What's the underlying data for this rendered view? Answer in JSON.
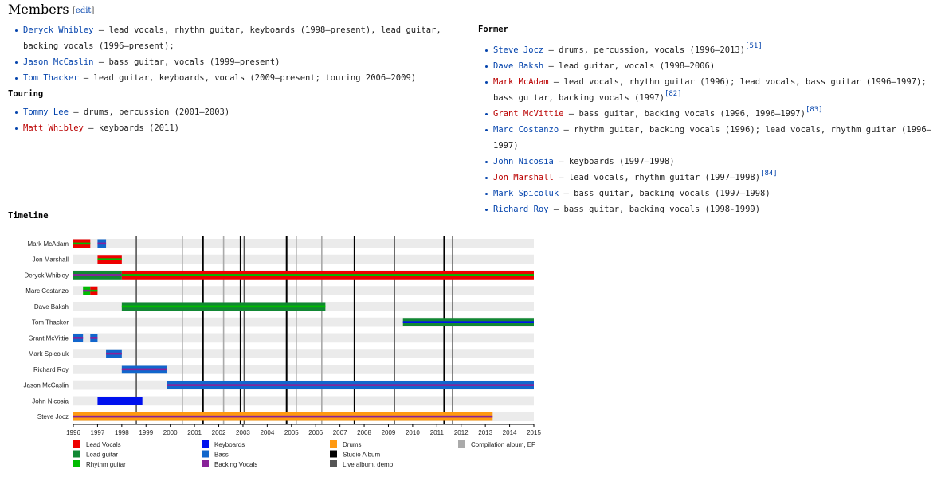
{
  "section": {
    "title": "Members",
    "edit_open": "[",
    "edit": "edit",
    "edit_close": "]"
  },
  "current": [
    {
      "name": "Deryck Whibley",
      "link": "blue",
      "desc": " – lead vocals, rhythm guitar, keyboards (1998–present), lead guitar, backing vocals (1996–present);",
      "ref": ""
    },
    {
      "name": "Jason McCaslin",
      "link": "blue",
      "desc": " – bass guitar, vocals (1999–present)",
      "ref": ""
    },
    {
      "name": "Tom Thacker",
      "link": "blue",
      "desc": " – lead guitar, keyboards, vocals (2009–present; touring 2006–2009)",
      "ref": ""
    }
  ],
  "touring_title": "Touring",
  "touring": [
    {
      "name": "Tommy Lee",
      "link": "blue",
      "desc": " – drums, percussion (2001–2003)",
      "ref": ""
    },
    {
      "name": "Matt Whibley",
      "link": "red",
      "desc": " – keyboards (2011)",
      "ref": ""
    }
  ],
  "former_title": "Former",
  "former": [
    {
      "name": "Steve Jocz",
      "link": "blue",
      "desc": " – drums, percussion, vocals (1996–2013)",
      "ref": "[51]"
    },
    {
      "name": "Dave Baksh",
      "link": "blue",
      "desc": " – lead guitar, vocals (1998–2006)",
      "ref": ""
    },
    {
      "name": "Mark McAdam",
      "link": "red",
      "desc": " – lead vocals, rhythm guitar (1996); lead vocals, bass guitar (1996–1997); bass guitar, backing vocals (1997)",
      "ref": "[82]"
    },
    {
      "name": "Grant McVittie",
      "link": "red",
      "desc": " – bass guitar, backing vocals (1996, 1996–1997)",
      "ref": "[83]"
    },
    {
      "name": "Marc Costanzo",
      "link": "blue",
      "desc": " – rhythm guitar, backing vocals (1996); lead vocals, rhythm guitar (1996–1997)",
      "ref": ""
    },
    {
      "name": "John Nicosia",
      "link": "blue",
      "desc": " – keyboards (1997–1998)",
      "ref": ""
    },
    {
      "name": "Jon Marshall",
      "link": "red",
      "desc": " – lead vocals, rhythm guitar (1997–1998)",
      "ref": "[84]"
    },
    {
      "name": "Mark Spicoluk",
      "link": "blue",
      "desc": " – bass guitar, backing vocals (1997–1998)",
      "ref": ""
    },
    {
      "name": "Richard Roy",
      "link": "blue",
      "desc": " – bass guitar, backing vocals (1998-1999)",
      "ref": ""
    }
  ],
  "timeline_title": "Timeline",
  "colors": {
    "lead_vocals": "#ee0000",
    "lead_guitar": "#118833",
    "rhythm_guitar": "#00bb00",
    "keyboards": "#0011ee",
    "bass": "#1166cc",
    "backing_vocals": "#882299",
    "drums": "#ff9911",
    "studio": "#000000",
    "live": "#555555",
    "compilation": "#aaaaaa"
  },
  "chart_data": {
    "type": "bar",
    "xlim": [
      1996,
      2015
    ],
    "x_ticks": [
      "1996",
      "1997",
      "1998",
      "1999",
      "2000",
      "2001",
      "2002",
      "2003",
      "2004",
      "2005",
      "2006",
      "2007",
      "2008",
      "2009",
      "2010",
      "2011",
      "2012",
      "2013",
      "2014",
      "2015"
    ],
    "rows": [
      {
        "name": "Mark McAdam",
        "bars": [
          {
            "start": 1996.0,
            "end": 1996.7,
            "outer": "lead_vocals",
            "inner": "rhythm_guitar"
          },
          {
            "start": 1997.0,
            "end": 1997.35,
            "outer": "bass",
            "inner": "backing_vocals"
          }
        ]
      },
      {
        "name": "Jon Marshall",
        "bars": [
          {
            "start": 1997.0,
            "end": 1998.0,
            "outer": "lead_vocals",
            "inner": "rhythm_guitar"
          }
        ]
      },
      {
        "name": "Deryck Whibley",
        "bars": [
          {
            "start": 1996.0,
            "end": 1998.0,
            "outer": "lead_guitar",
            "inner": "backing_vocals"
          },
          {
            "start": 1998.0,
            "end": 2015.0,
            "outer": "lead_vocals",
            "inner": "rhythm_guitar"
          }
        ]
      },
      {
        "name": "Marc Costanzo",
        "bars": [
          {
            "start": 1996.4,
            "end": 1996.7,
            "outer": "rhythm_guitar",
            "inner": "backing_vocals"
          },
          {
            "start": 1996.7,
            "end": 1997.0,
            "outer": "lead_vocals",
            "inner": "rhythm_guitar"
          }
        ]
      },
      {
        "name": "Dave Baksh",
        "bars": [
          {
            "start": 1998.0,
            "end": 2006.4,
            "outer": "lead_guitar",
            "inner": "rhythm_guitar"
          }
        ]
      },
      {
        "name": "Tom Thacker",
        "bars": [
          {
            "start": 2009.6,
            "end": 2015.0,
            "outer": "lead_guitar",
            "inner": "keyboards"
          }
        ]
      },
      {
        "name": "Grant McVittie",
        "bars": [
          {
            "start": 1996.0,
            "end": 1996.4,
            "outer": "bass",
            "inner": "backing_vocals"
          },
          {
            "start": 1996.7,
            "end": 1997.0,
            "outer": "bass",
            "inner": "backing_vocals"
          }
        ]
      },
      {
        "name": "Mark Spicoluk",
        "bars": [
          {
            "start": 1997.35,
            "end": 1998.0,
            "outer": "bass",
            "inner": "backing_vocals"
          }
        ]
      },
      {
        "name": "Richard Roy",
        "bars": [
          {
            "start": 1998.0,
            "end": 1999.85,
            "outer": "bass",
            "inner": "backing_vocals"
          }
        ]
      },
      {
        "name": "Jason McCaslin",
        "bars": [
          {
            "start": 1999.85,
            "end": 2015.0,
            "outer": "bass",
            "inner": "backing_vocals"
          }
        ]
      },
      {
        "name": "John Nicosia",
        "bars": [
          {
            "start": 1997.0,
            "end": 1998.85,
            "outer": "keyboards",
            "inner": ""
          }
        ]
      },
      {
        "name": "Steve Jocz",
        "bars": [
          {
            "start": 1996.0,
            "end": 2013.3,
            "outer": "drums",
            "inner": "backing_vocals"
          }
        ]
      }
    ],
    "events": [
      {
        "year": 1998.6,
        "kind": "live"
      },
      {
        "year": 2000.5,
        "kind": "compilation"
      },
      {
        "year": 2001.35,
        "kind": "studio"
      },
      {
        "year": 2002.2,
        "kind": "compilation"
      },
      {
        "year": 2002.9,
        "kind": "studio"
      },
      {
        "year": 2003.05,
        "kind": "live"
      },
      {
        "year": 2004.8,
        "kind": "studio"
      },
      {
        "year": 2005.2,
        "kind": "compilation"
      },
      {
        "year": 2006.25,
        "kind": "compilation"
      },
      {
        "year": 2007.6,
        "kind": "studio"
      },
      {
        "year": 2009.25,
        "kind": "live"
      },
      {
        "year": 2011.3,
        "kind": "studio"
      },
      {
        "year": 2011.65,
        "kind": "live"
      }
    ],
    "legend": [
      {
        "key": "lead_vocals",
        "label": "Lead Vocals"
      },
      {
        "key": "lead_guitar",
        "label": "Lead guitar"
      },
      {
        "key": "rhythm_guitar",
        "label": "Rhythm guitar"
      },
      {
        "key": "keyboards",
        "label": "Keyboards"
      },
      {
        "key": "bass",
        "label": "Bass"
      },
      {
        "key": "backing_vocals",
        "label": "Backing Vocals"
      },
      {
        "key": "drums",
        "label": "Drums"
      },
      {
        "key": "studio",
        "label": "Studio Album"
      },
      {
        "key": "live",
        "label": "Live album, demo"
      },
      {
        "key": "compilation",
        "label": "Compilation album, EP"
      }
    ]
  }
}
